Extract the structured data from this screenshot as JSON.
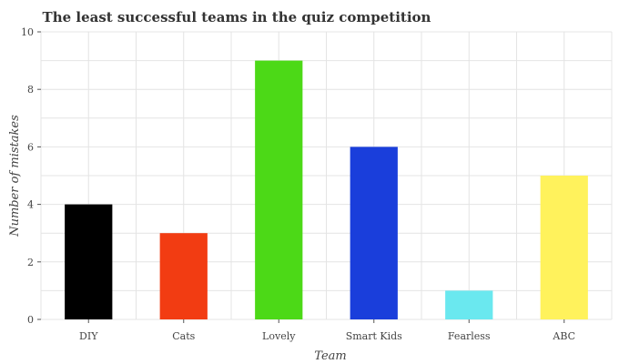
{
  "chart_data": {
    "type": "bar",
    "title": "The least successful teams in the quiz competition",
    "xlabel": "Team",
    "ylabel": "Number of mistakes",
    "categories": [
      "DIY",
      "Cats",
      "Lovely",
      "Smart Kids",
      "Fearless",
      "ABC"
    ],
    "values": [
      4,
      3,
      9,
      6,
      1,
      5
    ],
    "colors": [
      "#000000",
      "#f23c12",
      "#4cd917",
      "#1a3edb",
      "#6ae8ef",
      "#fff25c"
    ],
    "ylim": [
      0,
      10
    ],
    "yticks": [
      0,
      2,
      4,
      6,
      8,
      10
    ],
    "grid": true,
    "legend": "none"
  }
}
